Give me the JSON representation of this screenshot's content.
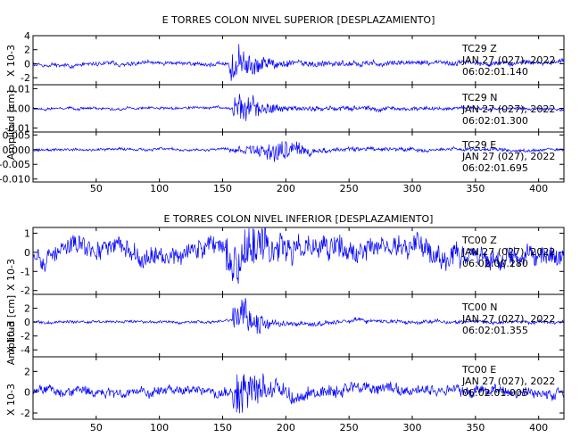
{
  "colors": {
    "signal": "#0000ff",
    "axis": "#000000",
    "background": "#ffffff"
  },
  "chart_data": [
    {
      "type": "line",
      "title": "E TORRES COLON NIVEL SUPERIOR [DESPLAZAMIENTO]",
      "side_labels": [
        {
          "id": "units",
          "text": "X 10-3"
        },
        {
          "id": "ylabel",
          "text": "Amplitud [cm]"
        }
      ],
      "x_ticks": [
        "50",
        "100",
        "150",
        "200",
        "250",
        "300",
        "350",
        "400"
      ],
      "xlim": [
        0,
        420
      ],
      "grid": false,
      "panels": [
        {
          "station": "TC29 Z",
          "date": "JAN 27 (027), 2022",
          "time": "06:02:01.140",
          "ylim": [
            -3,
            4
          ],
          "y_ticks": [
            "4",
            "2",
            "0",
            "-2"
          ],
          "signal": {
            "event_start": 155,
            "peak_at": 160,
            "peak_amp": 3.5,
            "pre_amp": 0.5,
            "coda_amp": 1.0,
            "offset": 0,
            "seed": 11
          }
        },
        {
          "station": "TC29 N",
          "date": "JAN 27 (027), 2022",
          "time": "06:02:01.300",
          "ylim": [
            -0.012,
            0.012
          ],
          "y_ticks": [
            "0.01",
            "0.00",
            "-0.01"
          ],
          "signal": {
            "event_start": 158,
            "peak_at": 165,
            "peak_amp": 0.0115,
            "pre_amp": 0.0012,
            "coda_amp": 0.0035,
            "offset": 0,
            "seed": 23
          }
        },
        {
          "station": "TC29 E",
          "date": "JAN 27 (027), 2022",
          "time": "06:02:01.695",
          "ylim": [
            -0.011,
            0.006
          ],
          "y_ticks": [
            "0.005",
            "0.000",
            "-0.005",
            "-0.010"
          ],
          "signal": {
            "event_start": 155,
            "peak_at": 195,
            "peak_amp": 0.0055,
            "pre_amp": 0.0008,
            "coda_amp": 0.002,
            "offset": 0,
            "seed": 37
          }
        }
      ]
    },
    {
      "type": "line",
      "title": "E TORRES COLON NIVEL INFERIOR [DESPLAZAMIENTO]",
      "side_labels": [
        {
          "id": "units-a",
          "text": "X 10-3"
        },
        {
          "id": "ylabel",
          "text": "Amplitud [cm]"
        },
        {
          "id": "units-b",
          "text": "X 10-3"
        },
        {
          "id": "units-c",
          "text": "X 10-3"
        }
      ],
      "x_ticks": [
        "50",
        "100",
        "150",
        "200",
        "250",
        "300",
        "350",
        "400"
      ],
      "xlim": [
        0,
        420
      ],
      "grid": false,
      "panels": [
        {
          "station": "TC00 Z",
          "date": "JAN 27 (027), 2022",
          "time": "06:02:00.280",
          "ylim": [
            -2.2,
            1.3
          ],
          "y_ticks": [
            "1",
            "0",
            "-1",
            "-2"
          ],
          "signal": {
            "event_start": 153,
            "peak_at": 160,
            "peak_amp": 1.6,
            "pre_amp": 0.9,
            "coda_amp": 1.0,
            "offset": 0.1,
            "seed": 53
          }
        },
        {
          "station": "TC00 N",
          "date": "JAN 27 (027), 2022",
          "time": "06:02:01.355",
          "ylim": [
            -5,
            4
          ],
          "y_ticks": [
            "2",
            "0",
            "-2",
            "-4"
          ],
          "signal": {
            "event_start": 158,
            "peak_at": 163,
            "peak_amp": 4.3,
            "pre_amp": 0.35,
            "coda_amp": 0.7,
            "offset": 0,
            "seed": 71
          }
        },
        {
          "station": "TC00 E",
          "date": "JAN 27 (027), 2022",
          "time": "06:02:01.005",
          "ylim": [
            -2.6,
            3.4
          ],
          "y_ticks": [
            "2",
            "0",
            "-2"
          ],
          "signal": {
            "event_start": 158,
            "peak_at": 163,
            "peak_amp": 3.0,
            "pre_amp": 0.8,
            "coda_amp": 1.0,
            "offset": 0,
            "seed": 89
          }
        }
      ]
    }
  ]
}
